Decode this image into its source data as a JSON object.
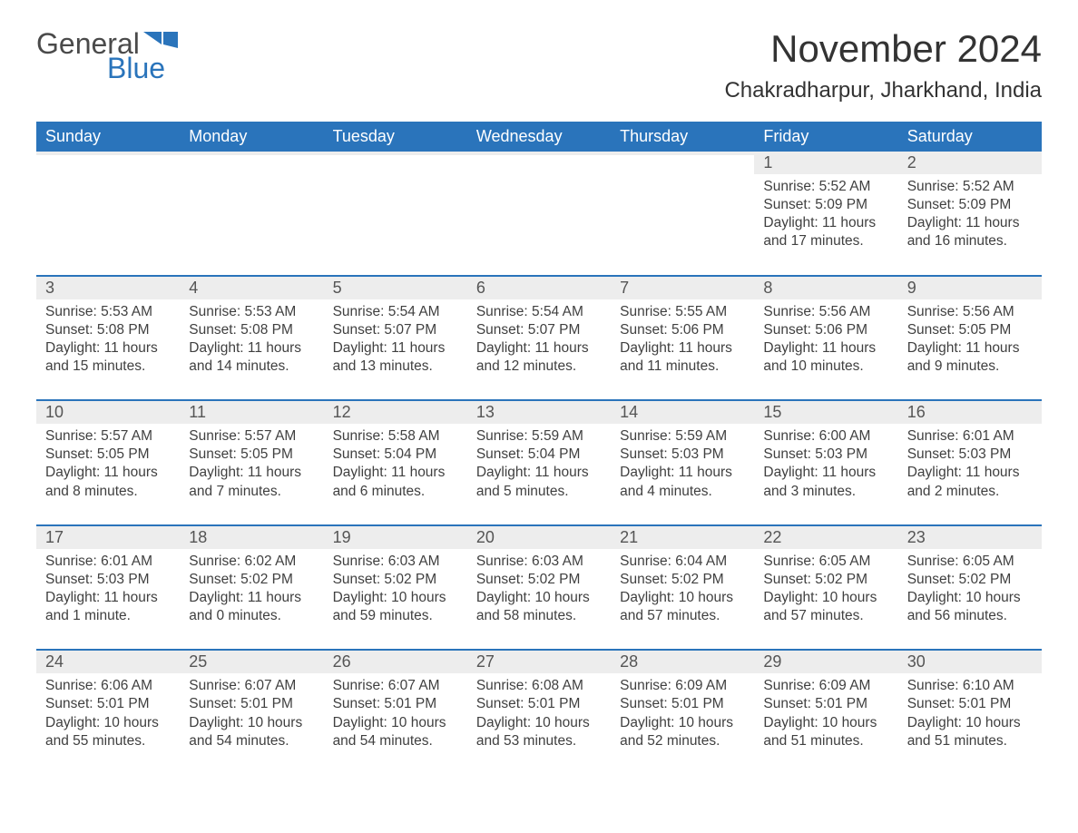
{
  "logo": {
    "text1": "General",
    "text2": "Blue",
    "flag_color": "#2a74bb"
  },
  "title": "November 2024",
  "location": "Chakradharpur, Jharkhand, India",
  "colors": {
    "header_bg": "#2a74bb",
    "header_text": "#ffffff",
    "daynum_bg": "#ededed",
    "body_text": "#404040",
    "title_text": "#333333",
    "border": "#2a74bb"
  },
  "fonts": {
    "title_size": 42,
    "location_size": 24,
    "dow_size": 18,
    "daynum_size": 18,
    "body_size": 15.5
  },
  "days_of_week": [
    "Sunday",
    "Monday",
    "Tuesday",
    "Wednesday",
    "Thursday",
    "Friday",
    "Saturday"
  ],
  "weeks": [
    [
      {
        "day": "",
        "sunrise": "",
        "sunset": "",
        "daylight": ""
      },
      {
        "day": "",
        "sunrise": "",
        "sunset": "",
        "daylight": ""
      },
      {
        "day": "",
        "sunrise": "",
        "sunset": "",
        "daylight": ""
      },
      {
        "day": "",
        "sunrise": "",
        "sunset": "",
        "daylight": ""
      },
      {
        "day": "",
        "sunrise": "",
        "sunset": "",
        "daylight": ""
      },
      {
        "day": "1",
        "sunrise": "Sunrise: 5:52 AM",
        "sunset": "Sunset: 5:09 PM",
        "daylight": "Daylight: 11 hours and 17 minutes."
      },
      {
        "day": "2",
        "sunrise": "Sunrise: 5:52 AM",
        "sunset": "Sunset: 5:09 PM",
        "daylight": "Daylight: 11 hours and 16 minutes."
      }
    ],
    [
      {
        "day": "3",
        "sunrise": "Sunrise: 5:53 AM",
        "sunset": "Sunset: 5:08 PM",
        "daylight": "Daylight: 11 hours and 15 minutes."
      },
      {
        "day": "4",
        "sunrise": "Sunrise: 5:53 AM",
        "sunset": "Sunset: 5:08 PM",
        "daylight": "Daylight: 11 hours and 14 minutes."
      },
      {
        "day": "5",
        "sunrise": "Sunrise: 5:54 AM",
        "sunset": "Sunset: 5:07 PM",
        "daylight": "Daylight: 11 hours and 13 minutes."
      },
      {
        "day": "6",
        "sunrise": "Sunrise: 5:54 AM",
        "sunset": "Sunset: 5:07 PM",
        "daylight": "Daylight: 11 hours and 12 minutes."
      },
      {
        "day": "7",
        "sunrise": "Sunrise: 5:55 AM",
        "sunset": "Sunset: 5:06 PM",
        "daylight": "Daylight: 11 hours and 11 minutes."
      },
      {
        "day": "8",
        "sunrise": "Sunrise: 5:56 AM",
        "sunset": "Sunset: 5:06 PM",
        "daylight": "Daylight: 11 hours and 10 minutes."
      },
      {
        "day": "9",
        "sunrise": "Sunrise: 5:56 AM",
        "sunset": "Sunset: 5:05 PM",
        "daylight": "Daylight: 11 hours and 9 minutes."
      }
    ],
    [
      {
        "day": "10",
        "sunrise": "Sunrise: 5:57 AM",
        "sunset": "Sunset: 5:05 PM",
        "daylight": "Daylight: 11 hours and 8 minutes."
      },
      {
        "day": "11",
        "sunrise": "Sunrise: 5:57 AM",
        "sunset": "Sunset: 5:05 PM",
        "daylight": "Daylight: 11 hours and 7 minutes."
      },
      {
        "day": "12",
        "sunrise": "Sunrise: 5:58 AM",
        "sunset": "Sunset: 5:04 PM",
        "daylight": "Daylight: 11 hours and 6 minutes."
      },
      {
        "day": "13",
        "sunrise": "Sunrise: 5:59 AM",
        "sunset": "Sunset: 5:04 PM",
        "daylight": "Daylight: 11 hours and 5 minutes."
      },
      {
        "day": "14",
        "sunrise": "Sunrise: 5:59 AM",
        "sunset": "Sunset: 5:03 PM",
        "daylight": "Daylight: 11 hours and 4 minutes."
      },
      {
        "day": "15",
        "sunrise": "Sunrise: 6:00 AM",
        "sunset": "Sunset: 5:03 PM",
        "daylight": "Daylight: 11 hours and 3 minutes."
      },
      {
        "day": "16",
        "sunrise": "Sunrise: 6:01 AM",
        "sunset": "Sunset: 5:03 PM",
        "daylight": "Daylight: 11 hours and 2 minutes."
      }
    ],
    [
      {
        "day": "17",
        "sunrise": "Sunrise: 6:01 AM",
        "sunset": "Sunset: 5:03 PM",
        "daylight": "Daylight: 11 hours and 1 minute."
      },
      {
        "day": "18",
        "sunrise": "Sunrise: 6:02 AM",
        "sunset": "Sunset: 5:02 PM",
        "daylight": "Daylight: 11 hours and 0 minutes."
      },
      {
        "day": "19",
        "sunrise": "Sunrise: 6:03 AM",
        "sunset": "Sunset: 5:02 PM",
        "daylight": "Daylight: 10 hours and 59 minutes."
      },
      {
        "day": "20",
        "sunrise": "Sunrise: 6:03 AM",
        "sunset": "Sunset: 5:02 PM",
        "daylight": "Daylight: 10 hours and 58 minutes."
      },
      {
        "day": "21",
        "sunrise": "Sunrise: 6:04 AM",
        "sunset": "Sunset: 5:02 PM",
        "daylight": "Daylight: 10 hours and 57 minutes."
      },
      {
        "day": "22",
        "sunrise": "Sunrise: 6:05 AM",
        "sunset": "Sunset: 5:02 PM",
        "daylight": "Daylight: 10 hours and 57 minutes."
      },
      {
        "day": "23",
        "sunrise": "Sunrise: 6:05 AM",
        "sunset": "Sunset: 5:02 PM",
        "daylight": "Daylight: 10 hours and 56 minutes."
      }
    ],
    [
      {
        "day": "24",
        "sunrise": "Sunrise: 6:06 AM",
        "sunset": "Sunset: 5:01 PM",
        "daylight": "Daylight: 10 hours and 55 minutes."
      },
      {
        "day": "25",
        "sunrise": "Sunrise: 6:07 AM",
        "sunset": "Sunset: 5:01 PM",
        "daylight": "Daylight: 10 hours and 54 minutes."
      },
      {
        "day": "26",
        "sunrise": "Sunrise: 6:07 AM",
        "sunset": "Sunset: 5:01 PM",
        "daylight": "Daylight: 10 hours and 54 minutes."
      },
      {
        "day": "27",
        "sunrise": "Sunrise: 6:08 AM",
        "sunset": "Sunset: 5:01 PM",
        "daylight": "Daylight: 10 hours and 53 minutes."
      },
      {
        "day": "28",
        "sunrise": "Sunrise: 6:09 AM",
        "sunset": "Sunset: 5:01 PM",
        "daylight": "Daylight: 10 hours and 52 minutes."
      },
      {
        "day": "29",
        "sunrise": "Sunrise: 6:09 AM",
        "sunset": "Sunset: 5:01 PM",
        "daylight": "Daylight: 10 hours and 51 minutes."
      },
      {
        "day": "30",
        "sunrise": "Sunrise: 6:10 AM",
        "sunset": "Sunset: 5:01 PM",
        "daylight": "Daylight: 10 hours and 51 minutes."
      }
    ]
  ]
}
